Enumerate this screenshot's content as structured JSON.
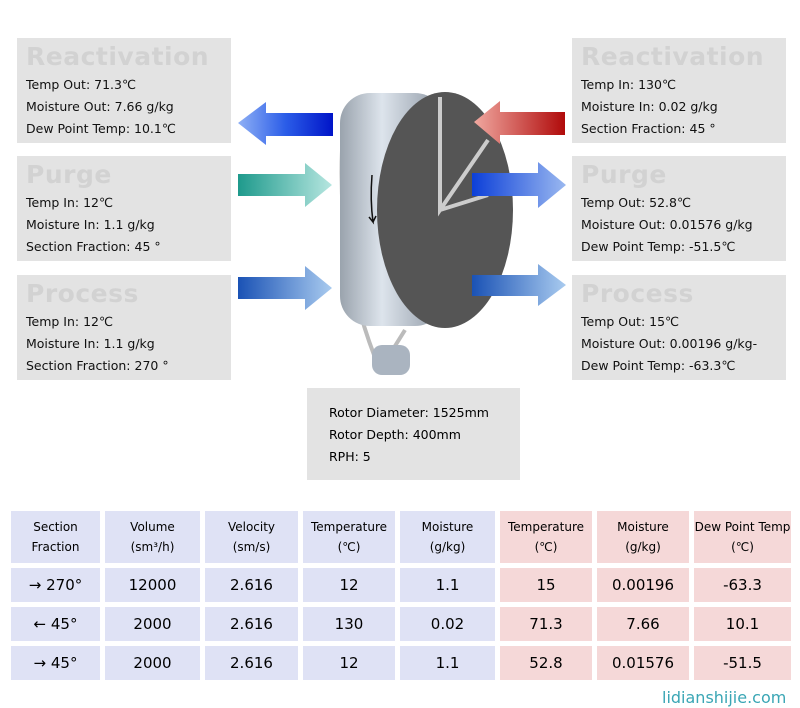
{
  "left": [
    {
      "title": "Reactivation",
      "lines": [
        "Temp Out: 71.3℃",
        "Moisture Out: 7.66 g/kg",
        "Dew Point Temp: 10.1℃"
      ]
    },
    {
      "title": "Purge",
      "lines": [
        "Temp In: 12℃",
        "Moisture In: 1.1 g/kg",
        "Section Fraction: 45 °"
      ]
    },
    {
      "title": "Process",
      "lines": [
        "Temp In: 12℃",
        "Moisture In: 1.1 g/kg",
        "Section Fraction: 270 °"
      ]
    }
  ],
  "right": [
    {
      "title": "Reactivation",
      "lines": [
        "Temp In: 130℃",
        "Moisture In: 0.02 g/kg",
        "Section Fraction: 45 °"
      ]
    },
    {
      "title": "Purge",
      "lines": [
        "Temp Out: 52.8℃",
        "Moisture Out: 0.01576 g/kg",
        "Dew Point Temp: -51.5℃"
      ]
    },
    {
      "title": "Process",
      "lines": [
        "Temp Out: 15℃",
        "Moisture Out: 0.00196 g/kg-",
        "Dew Point Temp: -63.3℃"
      ]
    }
  ],
  "rotor": [
    "Rotor Diameter: 1525mm",
    "Rotor Depth: 400mm",
    "RPH: 5"
  ],
  "table": {
    "headers": [
      [
        "Section",
        "Fraction"
      ],
      [
        "Volume",
        "(sm³/h)"
      ],
      [
        "Velocity",
        "(sm/s)"
      ],
      [
        "Temperature",
        "(℃)"
      ],
      [
        "Moisture",
        "(g/kg)"
      ],
      [
        "Temperature",
        "(℃)"
      ],
      [
        "Moisture",
        "(g/kg)"
      ],
      [
        "Dew Point Temp",
        "(℃)"
      ]
    ],
    "rows": [
      [
        "→  270°",
        "12000",
        "2.616",
        "12",
        "1.1",
        "15",
        "0.00196",
        "-63.3"
      ],
      [
        "←  45°",
        "2000",
        "2.616",
        "130",
        "0.02",
        "71.3",
        "7.66",
        "10.1"
      ],
      [
        "→  45°",
        "2000",
        "2.616",
        "12",
        "1.1",
        "52.8",
        "0.01576",
        "-51.5"
      ]
    ]
  },
  "watermark": "lidianshijie.com",
  "colors": {
    "inlet_bg": "#dfe2f5",
    "outlet_bg": "#f5d8d8",
    "box_bg": "#e3e3e3"
  }
}
